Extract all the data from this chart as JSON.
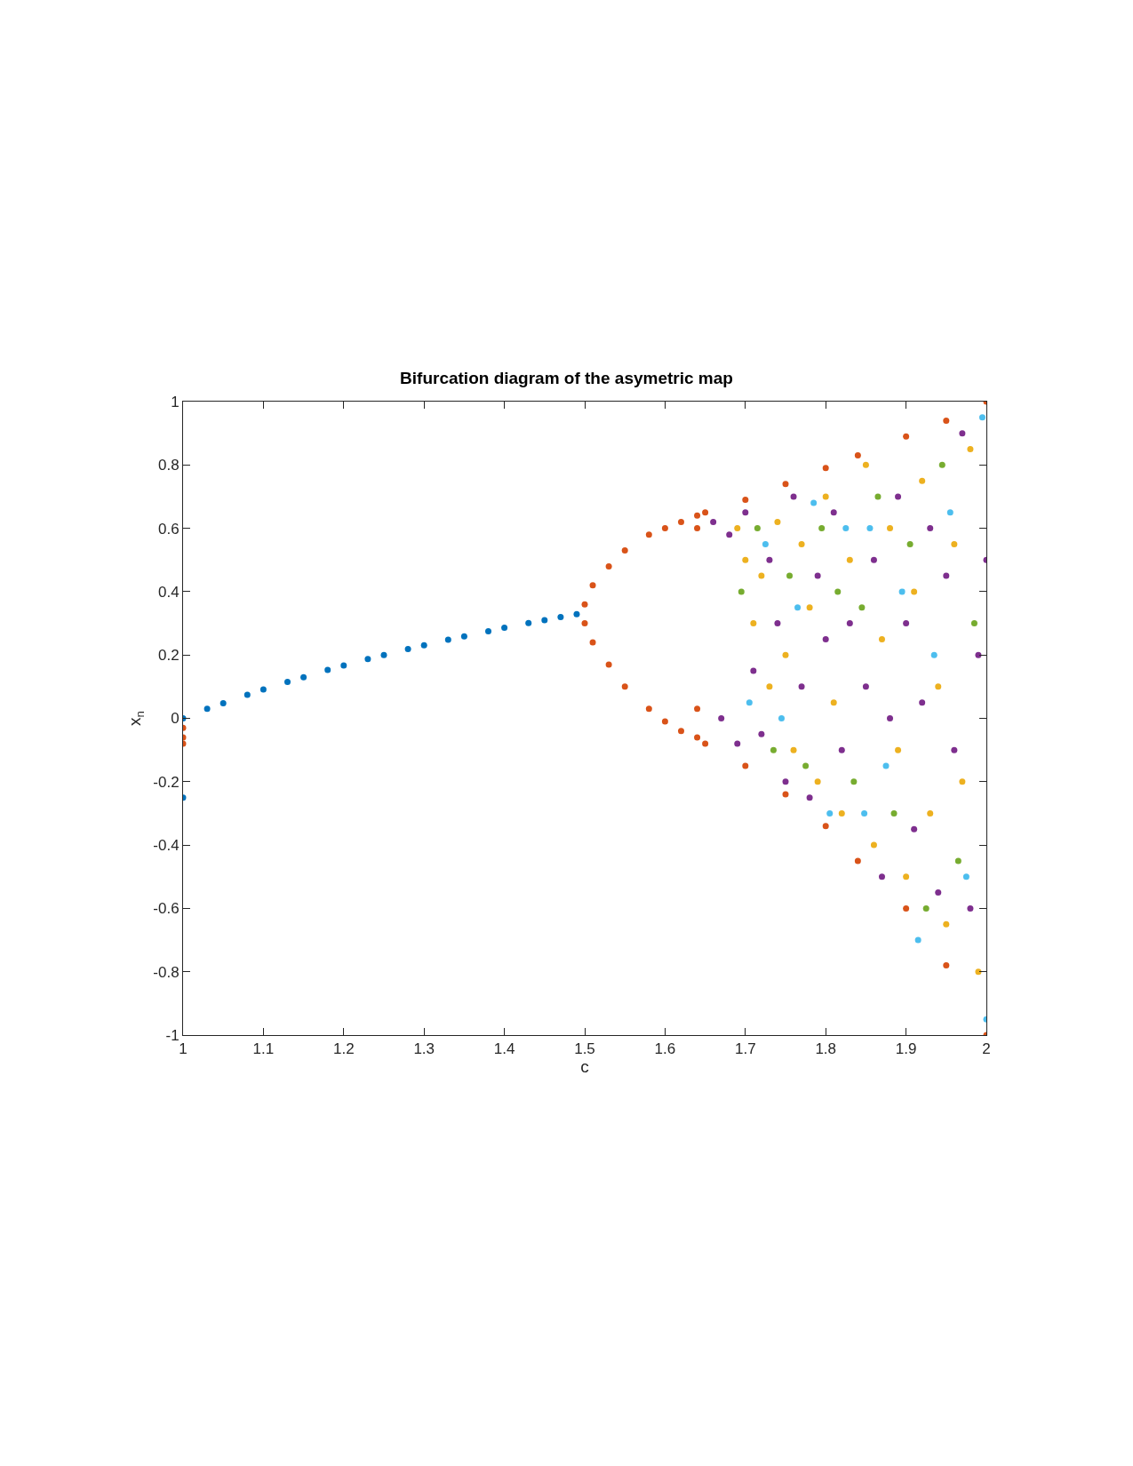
{
  "chart_data": {
    "type": "scatter",
    "title": "Bifurcation diagram of the asymetric map",
    "xlabel": "c",
    "ylabel": "x$_{n}$",
    "xlim": [
      1,
      2
    ],
    "xticks": [
      1,
      1.1,
      1.2,
      1.3,
      1.4,
      1.5,
      1.6,
      1.7,
      1.8,
      1.9,
      2
    ],
    "ylim": [
      -1,
      1
    ],
    "yticks": [
      -1,
      -0.8,
      -0.6,
      -0.4,
      -0.2,
      0,
      0.2,
      0.4,
      0.6,
      0.8,
      1
    ],
    "marker": "circle",
    "series": [
      {
        "color": "#0072bd",
        "x": [
          1.0,
          1.0,
          1.03,
          1.05,
          1.08,
          1.1,
          1.13,
          1.15,
          1.18,
          1.2,
          1.23,
          1.25,
          1.28,
          1.3,
          1.33,
          1.35,
          1.38,
          1.4,
          1.43,
          1.45,
          1.47,
          1.49
        ],
        "values": [
          0.0,
          -0.25,
          0.03,
          0.048,
          0.074,
          0.091,
          0.115,
          0.13,
          0.153,
          0.167,
          0.187,
          0.2,
          0.219,
          0.231,
          0.248,
          0.259,
          0.275,
          0.286,
          0.301,
          0.31,
          0.32,
          0.329
        ]
      },
      {
        "color": "#d95319",
        "x": [
          1.0,
          1.0,
          1.0,
          1.5,
          1.51,
          1.53,
          1.55,
          1.58,
          1.6,
          1.62,
          1.5,
          1.51,
          1.53,
          1.55,
          1.58,
          1.6,
          1.62,
          1.64,
          1.64,
          1.64,
          1.64,
          1.65,
          1.7,
          1.75,
          1.8,
          1.84,
          1.9,
          1.95,
          2.0,
          1.65,
          1.7,
          1.75,
          1.8,
          1.84,
          1.9,
          1.95,
          2.0
        ],
        "values": [
          -0.03,
          -0.06,
          -0.08,
          0.36,
          0.42,
          0.48,
          0.53,
          0.58,
          0.6,
          0.62,
          0.3,
          0.24,
          0.17,
          0.1,
          0.03,
          -0.01,
          -0.04,
          0.64,
          0.6,
          0.03,
          -0.06,
          0.65,
          0.69,
          0.74,
          0.79,
          0.83,
          0.89,
          0.94,
          1.0,
          -0.08,
          -0.15,
          -0.24,
          -0.34,
          -0.45,
          -0.6,
          -0.78,
          -1.0
        ]
      },
      {
        "color": "#edb120",
        "x": [
          1.69,
          1.7,
          1.71,
          1.72,
          1.73,
          1.74,
          1.75,
          1.76,
          1.77,
          1.78,
          1.79,
          1.8,
          1.81,
          1.82,
          1.83,
          1.85,
          1.86,
          1.87,
          1.88,
          1.89,
          1.9,
          1.91,
          1.92,
          1.93,
          1.94,
          1.95,
          1.96,
          1.97,
          1.98,
          1.99
        ],
        "values": [
          0.6,
          0.5,
          0.3,
          0.45,
          0.1,
          0.62,
          0.2,
          -0.1,
          0.55,
          0.35,
          -0.2,
          0.7,
          0.05,
          -0.3,
          0.5,
          0.8,
          -0.4,
          0.25,
          0.6,
          -0.1,
          -0.5,
          0.4,
          0.75,
          -0.3,
          0.1,
          -0.65,
          0.55,
          -0.2,
          0.85,
          -0.8
        ]
      },
      {
        "color": "#7e2f8e",
        "x": [
          1.66,
          1.67,
          1.68,
          1.69,
          1.7,
          1.71,
          1.72,
          1.73,
          1.74,
          1.75,
          1.76,
          1.77,
          1.78,
          1.79,
          1.8,
          1.81,
          1.82,
          1.83,
          1.85,
          1.86,
          1.87,
          1.88,
          1.89,
          1.9,
          1.91,
          1.92,
          1.93,
          1.94,
          1.95,
          1.96,
          1.97,
          1.98,
          1.99,
          2.0
        ],
        "values": [
          0.62,
          0.0,
          0.58,
          -0.08,
          0.65,
          0.15,
          -0.05,
          0.5,
          0.3,
          -0.2,
          0.7,
          0.1,
          -0.25,
          0.45,
          0.25,
          0.65,
          -0.1,
          0.3,
          0.1,
          0.5,
          -0.5,
          0.0,
          0.7,
          0.3,
          -0.35,
          0.05,
          0.6,
          -0.55,
          0.45,
          -0.1,
          0.9,
          -0.6,
          0.2,
          0.5
        ]
      },
      {
        "color": "#77ac30",
        "x": [
          1.695,
          1.715,
          1.735,
          1.755,
          1.775,
          1.795,
          1.815,
          1.835,
          1.845,
          1.865,
          1.885,
          1.905,
          1.925,
          1.945,
          1.965,
          1.985
        ],
        "values": [
          0.4,
          0.6,
          -0.1,
          0.45,
          -0.15,
          0.6,
          0.4,
          -0.2,
          0.35,
          0.7,
          -0.3,
          0.55,
          -0.6,
          0.8,
          -0.45,
          0.3
        ]
      },
      {
        "color": "#4dbeee",
        "x": [
          1.705,
          1.725,
          1.745,
          1.765,
          1.785,
          1.805,
          1.825,
          1.848,
          1.855,
          1.875,
          1.895,
          1.915,
          1.935,
          1.955,
          1.975,
          1.995,
          2.0
        ],
        "values": [
          0.05,
          0.55,
          0.0,
          0.35,
          0.68,
          -0.3,
          0.6,
          -0.3,
          0.6,
          -0.15,
          0.4,
          -0.7,
          0.2,
          0.65,
          -0.5,
          0.95,
          -0.95
        ]
      }
    ]
  }
}
